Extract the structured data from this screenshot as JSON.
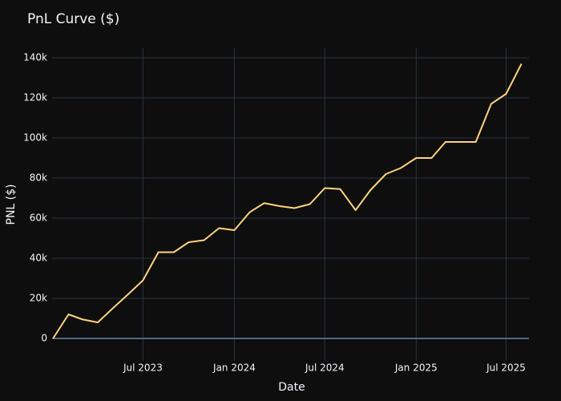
{
  "chart_data": {
    "type": "line",
    "title": "PnL Curve ($)",
    "x_label": "Date",
    "y_label": "PNL ($)",
    "x": [
      "2023-01",
      "2023-02",
      "2023-03",
      "2023-04",
      "2023-05",
      "2023-06",
      "2023-07",
      "2023-08",
      "2023-09",
      "2023-10",
      "2023-11",
      "2023-12",
      "2024-01",
      "2024-02",
      "2024-03",
      "2024-04",
      "2024-05",
      "2024-06",
      "2024-07",
      "2024-08",
      "2024-09",
      "2024-10",
      "2024-11",
      "2024-12",
      "2025-01",
      "2025-02",
      "2025-03",
      "2025-04",
      "2025-05",
      "2025-06",
      "2025-07",
      "2025-08"
    ],
    "series": [
      {
        "name": "PnL",
        "color": "#fdd37c",
        "values": [
          0,
          12000,
          9500,
          8000,
          15000,
          22000,
          29000,
          43000,
          43000,
          48000,
          49000,
          55000,
          54000,
          63000,
          67500,
          66000,
          65000,
          67000,
          75000,
          74500,
          64000,
          74000,
          82000,
          85000,
          90000,
          90000,
          98000,
          98000,
          98000,
          117000,
          122000,
          137000
        ]
      }
    ],
    "xlim": [
      "2023-01",
      "2025-08"
    ],
    "xticks": [
      {
        "value": "2023-07",
        "label": "Jul 2023"
      },
      {
        "value": "2024-01",
        "label": "Jan 2024"
      },
      {
        "value": "2024-07",
        "label": "Jul 2024"
      },
      {
        "value": "2025-01",
        "label": "Jan 2025"
      },
      {
        "value": "2025-07",
        "label": "Jul 2025"
      }
    ],
    "ylim": [
      -11200,
      144800
    ],
    "yticks": [
      0,
      {
        "value": 20000,
        "label": "20k"
      },
      {
        "value": 40000,
        "label": "40k"
      },
      {
        "value": 60000,
        "label": "60k"
      },
      {
        "value": 80000,
        "label": "80k"
      },
      {
        "value": 100000,
        "label": "100k"
      },
      {
        "value": 120000,
        "label": "120k"
      },
      {
        "value": 140000,
        "label": "140k"
      }
    ],
    "grid": true
  }
}
